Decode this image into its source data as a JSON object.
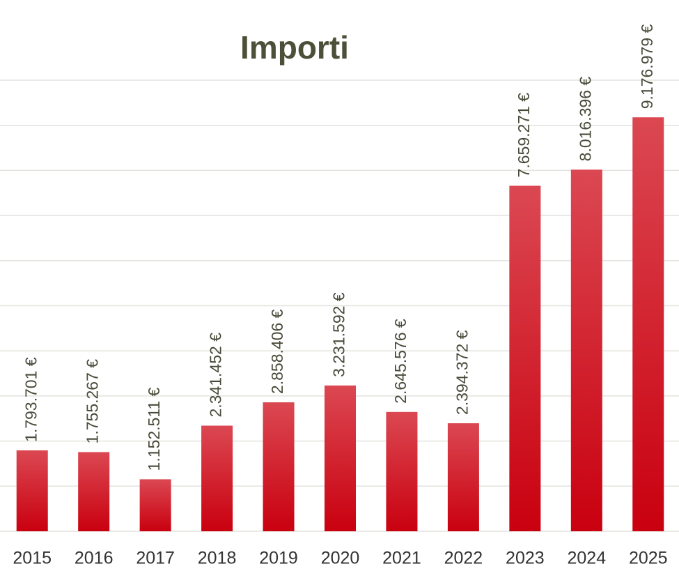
{
  "chart_data": {
    "type": "bar",
    "title": "Importi",
    "categories": [
      "2015",
      "2016",
      "2017",
      "2018",
      "2019",
      "2020",
      "2021",
      "2022",
      "2023",
      "2024",
      "2025"
    ],
    "values": [
      1793701,
      1755267,
      1152511,
      2341452,
      2858406,
      3231592,
      2645576,
      2394372,
      7659271,
      8016396,
      9176979
    ],
    "value_labels": [
      "1.793.701 €",
      "1.755.267 €",
      "1.152.511 €",
      "2.341.452 €",
      "2.858.406 €",
      "3.231.592 €",
      "2.645.576 €",
      "2.394.372 €",
      "7.659.271 €",
      "8.016.396 €",
      "9.176.979 €"
    ],
    "gradient": {
      "top": "#db4852",
      "bottom": "#c9000f"
    },
    "ylim": [
      0,
      10000000
    ],
    "yticks": [
      0,
      1000000,
      2000000,
      3000000,
      4000000,
      5000000,
      6000000,
      7000000,
      8000000,
      9000000,
      10000000
    ],
    "grid": true
  }
}
